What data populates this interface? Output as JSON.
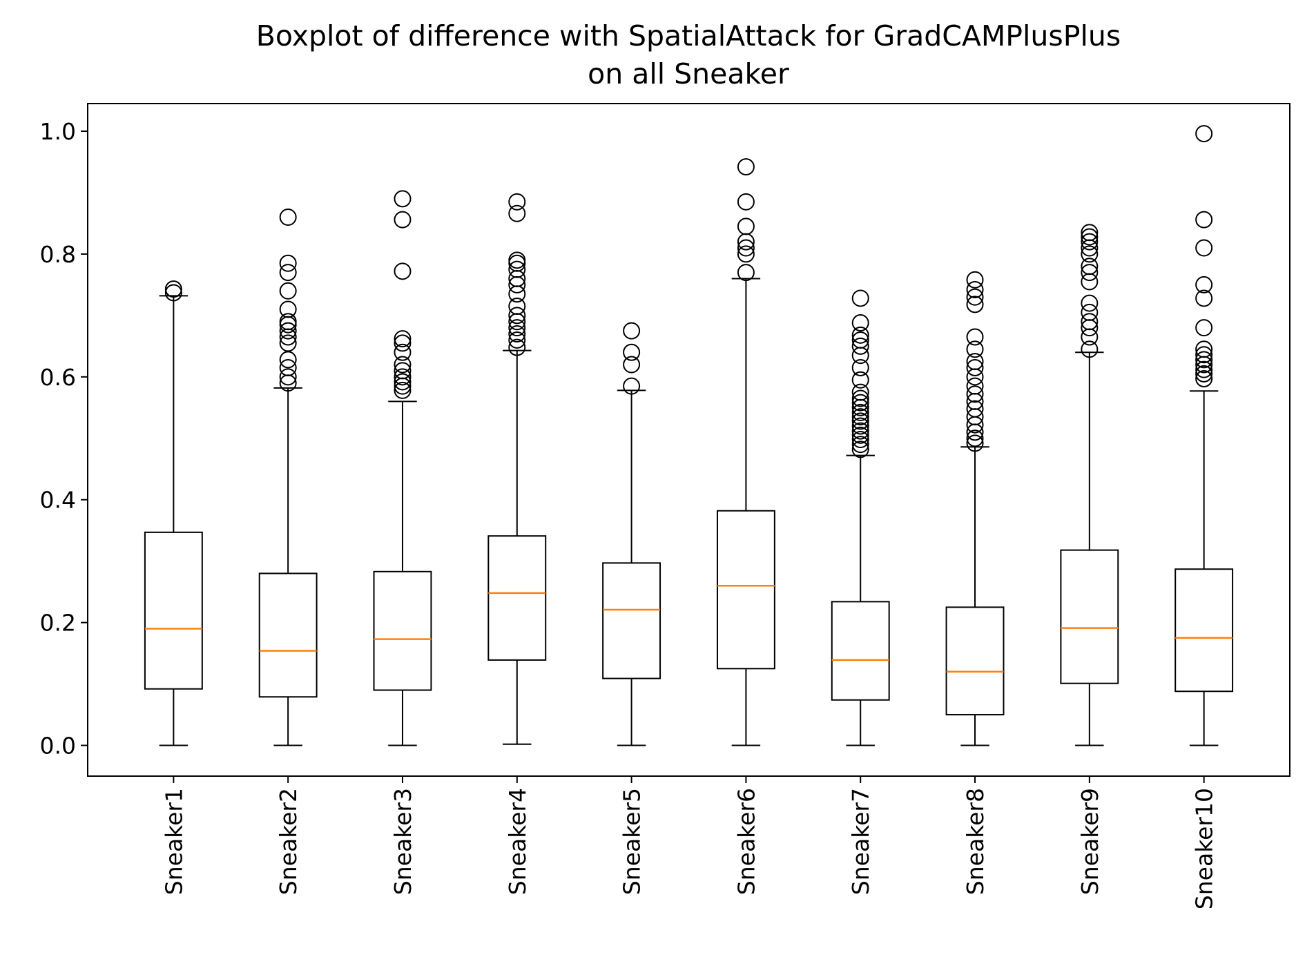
{
  "chart_data": {
    "type": "boxplot",
    "title": "Boxplot of difference with SpatialAttack for GradCAMPlusPlus",
    "subtitle": "on all Sneaker",
    "xlabel": "",
    "ylabel": "",
    "ylim": [
      -0.05,
      1.045
    ],
    "yticks": [
      "0.0",
      "0.2",
      "0.4",
      "0.6",
      "0.8",
      "1.0"
    ],
    "grid": false,
    "colors": {
      "box": "#000000",
      "median": "#ff7f0e",
      "outlier": "#000000"
    },
    "categories": [
      "Sneaker1",
      "Sneaker2",
      "Sneaker3",
      "Sneaker4",
      "Sneaker5",
      "Sneaker6",
      "Sneaker7",
      "Sneaker8",
      "Sneaker9",
      "Sneaker10"
    ],
    "boxes": [
      {
        "name": "Sneaker1",
        "whisker_low": 0.0,
        "q1": 0.092,
        "median": 0.19,
        "q3": 0.347,
        "whisker_high": 0.732,
        "outliers": [
          0.737,
          0.743
        ]
      },
      {
        "name": "Sneaker2",
        "whisker_low": 0.0,
        "q1": 0.079,
        "median": 0.154,
        "q3": 0.28,
        "whisker_high": 0.582,
        "outliers": [
          0.59,
          0.6,
          0.615,
          0.628,
          0.655,
          0.665,
          0.675,
          0.685,
          0.69,
          0.71,
          0.74,
          0.77,
          0.785,
          0.86
        ]
      },
      {
        "name": "Sneaker3",
        "whisker_low": 0.0,
        "q1": 0.09,
        "median": 0.173,
        "q3": 0.283,
        "whisker_high": 0.56,
        "outliers": [
          0.578,
          0.585,
          0.592,
          0.6,
          0.61,
          0.62,
          0.64,
          0.655,
          0.662,
          0.772,
          0.856,
          0.89
        ]
      },
      {
        "name": "Sneaker4",
        "whisker_low": 0.002,
        "q1": 0.139,
        "median": 0.248,
        "q3": 0.341,
        "whisker_high": 0.643,
        "outliers": [
          0.648,
          0.66,
          0.67,
          0.68,
          0.69,
          0.7,
          0.715,
          0.735,
          0.75,
          0.76,
          0.775,
          0.785,
          0.79,
          0.866,
          0.885
        ]
      },
      {
        "name": "Sneaker5",
        "whisker_low": 0.0,
        "q1": 0.109,
        "median": 0.221,
        "q3": 0.297,
        "whisker_high": 0.578,
        "outliers": [
          0.585,
          0.62,
          0.64,
          0.675
        ]
      },
      {
        "name": "Sneaker6",
        "whisker_low": 0.0,
        "q1": 0.125,
        "median": 0.26,
        "q3": 0.382,
        "whisker_high": 0.76,
        "outliers": [
          0.77,
          0.8,
          0.81,
          0.82,
          0.845,
          0.885,
          0.942
        ]
      },
      {
        "name": "Sneaker7",
        "whisker_low": 0.0,
        "q1": 0.074,
        "median": 0.139,
        "q3": 0.234,
        "whisker_high": 0.472,
        "outliers": [
          0.482,
          0.49,
          0.498,
          0.505,
          0.512,
          0.52,
          0.528,
          0.535,
          0.542,
          0.55,
          0.558,
          0.565,
          0.575,
          0.595,
          0.615,
          0.635,
          0.65,
          0.66,
          0.668,
          0.688,
          0.728
        ]
      },
      {
        "name": "Sneaker8",
        "whisker_low": 0.0,
        "q1": 0.05,
        "median": 0.12,
        "q3": 0.225,
        "whisker_high": 0.486,
        "outliers": [
          0.492,
          0.5,
          0.51,
          0.522,
          0.535,
          0.548,
          0.56,
          0.572,
          0.585,
          0.6,
          0.615,
          0.625,
          0.645,
          0.665,
          0.718,
          0.73,
          0.742,
          0.758
        ]
      },
      {
        "name": "Sneaker9",
        "whisker_low": 0.0,
        "q1": 0.101,
        "median": 0.191,
        "q3": 0.318,
        "whisker_high": 0.64,
        "outliers": [
          0.645,
          0.665,
          0.68,
          0.69,
          0.705,
          0.72,
          0.755,
          0.77,
          0.78,
          0.8,
          0.81,
          0.82,
          0.828,
          0.835
        ]
      },
      {
        "name": "Sneaker10",
        "whisker_low": 0.0,
        "q1": 0.088,
        "median": 0.175,
        "q3": 0.287,
        "whisker_high": 0.577,
        "outliers": [
          0.597,
          0.605,
          0.612,
          0.62,
          0.628,
          0.636,
          0.645,
          0.68,
          0.728,
          0.75,
          0.81,
          0.856,
          0.996
        ]
      }
    ]
  }
}
